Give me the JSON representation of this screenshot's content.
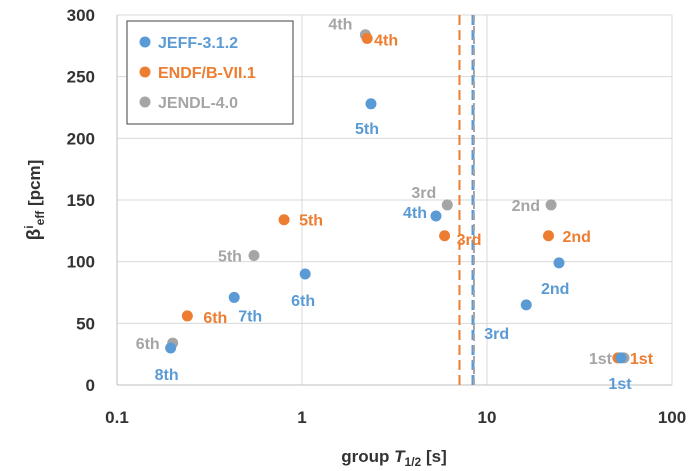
{
  "chart_data": {
    "type": "scatter",
    "x_scale": "log",
    "xlim": [
      0.1,
      100
    ],
    "ylim": [
      0,
      300
    ],
    "x_ticks": [
      0.1,
      1,
      10,
      100
    ],
    "x_tick_labels": [
      "0.1",
      "1",
      "10",
      "100"
    ],
    "y_ticks": [
      0,
      50,
      100,
      150,
      200,
      250,
      300
    ],
    "y_tick_labels": [
      "0",
      "50",
      "100",
      "150",
      "200",
      "250",
      "300"
    ],
    "grid": true,
    "legend_position": "top-left",
    "xlabel": {
      "prefix": "group ",
      "var": "T",
      "sub": "1/2",
      "suffix": " [s]"
    },
    "ylabel": {
      "base": "β",
      "sup": "i",
      "sub": "eff",
      "suffix": " [pcm]"
    },
    "series": [
      {
        "name": "JEFF-3.1.2",
        "color": "#5B9BD5",
        "points": [
          {
            "x": 53.0,
            "y": 22,
            "label": "1st"
          },
          {
            "x": 24.5,
            "y": 99,
            "label": "2nd"
          },
          {
            "x": 16.3,
            "y": 65,
            "label": "3rd"
          },
          {
            "x": 5.3,
            "y": 137,
            "label": "4th"
          },
          {
            "x": 2.36,
            "y": 228,
            "label": "5th"
          },
          {
            "x": 1.04,
            "y": 90,
            "label": "6th"
          },
          {
            "x": 0.43,
            "y": 71,
            "label": "7th"
          },
          {
            "x": 0.195,
            "y": 30,
            "label": "8th"
          }
        ],
        "vline_x": 8.4
      },
      {
        "name": "ENDF/B-VII.1",
        "color": "#ED7D31",
        "points": [
          {
            "x": 51.0,
            "y": 22,
            "label": "1st"
          },
          {
            "x": 21.5,
            "y": 121,
            "label": "2nd"
          },
          {
            "x": 5.9,
            "y": 121,
            "label": "3rd"
          },
          {
            "x": 2.25,
            "y": 281,
            "label": "4th"
          },
          {
            "x": 0.8,
            "y": 134,
            "label": "5th"
          },
          {
            "x": 0.24,
            "y": 56,
            "label": "6th"
          }
        ],
        "vline_x": 7.1
      },
      {
        "name": "JENDL-4.0",
        "color": "#A5A5A5",
        "points": [
          {
            "x": 55.0,
            "y": 22,
            "label": "1st"
          },
          {
            "x": 22.2,
            "y": 146,
            "label": "2nd"
          },
          {
            "x": 6.1,
            "y": 146,
            "label": "3rd"
          },
          {
            "x": 2.2,
            "y": 284,
            "label": "4th"
          },
          {
            "x": 0.55,
            "y": 105,
            "label": "5th"
          },
          {
            "x": 0.2,
            "y": 34,
            "label": "6th"
          }
        ],
        "vline_x": 8.5
      }
    ]
  }
}
